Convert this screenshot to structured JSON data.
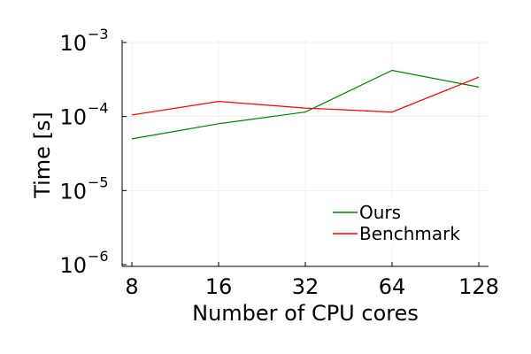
{
  "chart_data": {
    "type": "line",
    "title": "",
    "xlabel": "Number of CPU cores",
    "ylabel": "Time [s]",
    "x_scale": "log2",
    "y_scale": "log10",
    "x": [
      8,
      16,
      32,
      64,
      128
    ],
    "x_tick_labels": [
      "8",
      "16",
      "32",
      "64",
      "128"
    ],
    "y_ticks": [
      {
        "value": 1e-06,
        "base": "10",
        "exponent": "−6"
      },
      {
        "value": 1e-05,
        "base": "10",
        "exponent": "−5"
      },
      {
        "value": 0.0001,
        "base": "10",
        "exponent": "−4"
      },
      {
        "value": 0.001,
        "base": "10",
        "exponent": "−3"
      }
    ],
    "ylim": [
      1e-06,
      0.001
    ],
    "grid": true,
    "legend_position": "bottom-right",
    "series": [
      {
        "name": "Ours",
        "color": "#008000",
        "values": [
          5e-05,
          8e-05,
          0.000115,
          0.00042,
          0.00025
        ]
      },
      {
        "name": "Benchmark",
        "color": "#ff0000",
        "values": [
          0.000105,
          0.00016,
          0.00013,
          0.000115,
          0.00034
        ]
      }
    ]
  }
}
